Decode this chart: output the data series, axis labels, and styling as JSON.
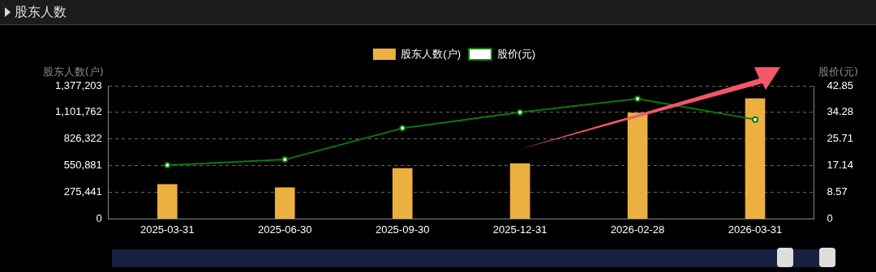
{
  "chart_data": {
    "type": "bar",
    "title": "股东人数",
    "categories": [
      "2025-03-31",
      "2025-06-30",
      "2025-09-30",
      "2025-12-31",
      "2026-02-28",
      "2026-03-31"
    ],
    "series": [
      {
        "name": "股东人数(户)",
        "type": "bar",
        "color": "#ebb040",
        "values": [
          357000,
          324000,
          523000,
          572000,
          1095000,
          1244000
        ]
      },
      {
        "name": "股价(元)",
        "type": "line",
        "axis": "y2",
        "color": "#0a7a0a",
        "values": [
          17.3,
          19.1,
          29.2,
          34.3,
          38.7,
          32.0
        ]
      }
    ],
    "ylabel": "股东人数(户)",
    "y2label": "股价(元)",
    "ylim": [
      0,
      1377203
    ],
    "yticks": [
      0,
      {
        "value": 275441,
        "label": "275,441"
      },
      {
        "value": 550881,
        "label": "550,881"
      },
      {
        "value": 826322,
        "label": "826,322"
      },
      {
        "value": 1101762,
        "label": "1,101,762"
      },
      {
        "value": 1377203,
        "label": "1,377,203"
      }
    ],
    "y2lim": [
      0,
      42.85
    ],
    "y2ticks": [
      0,
      8.57,
      17.14,
      25.71,
      34.28,
      42.85
    ],
    "grid": "y",
    "legend": "top",
    "marker": "circle",
    "line_style": "solid"
  }
}
